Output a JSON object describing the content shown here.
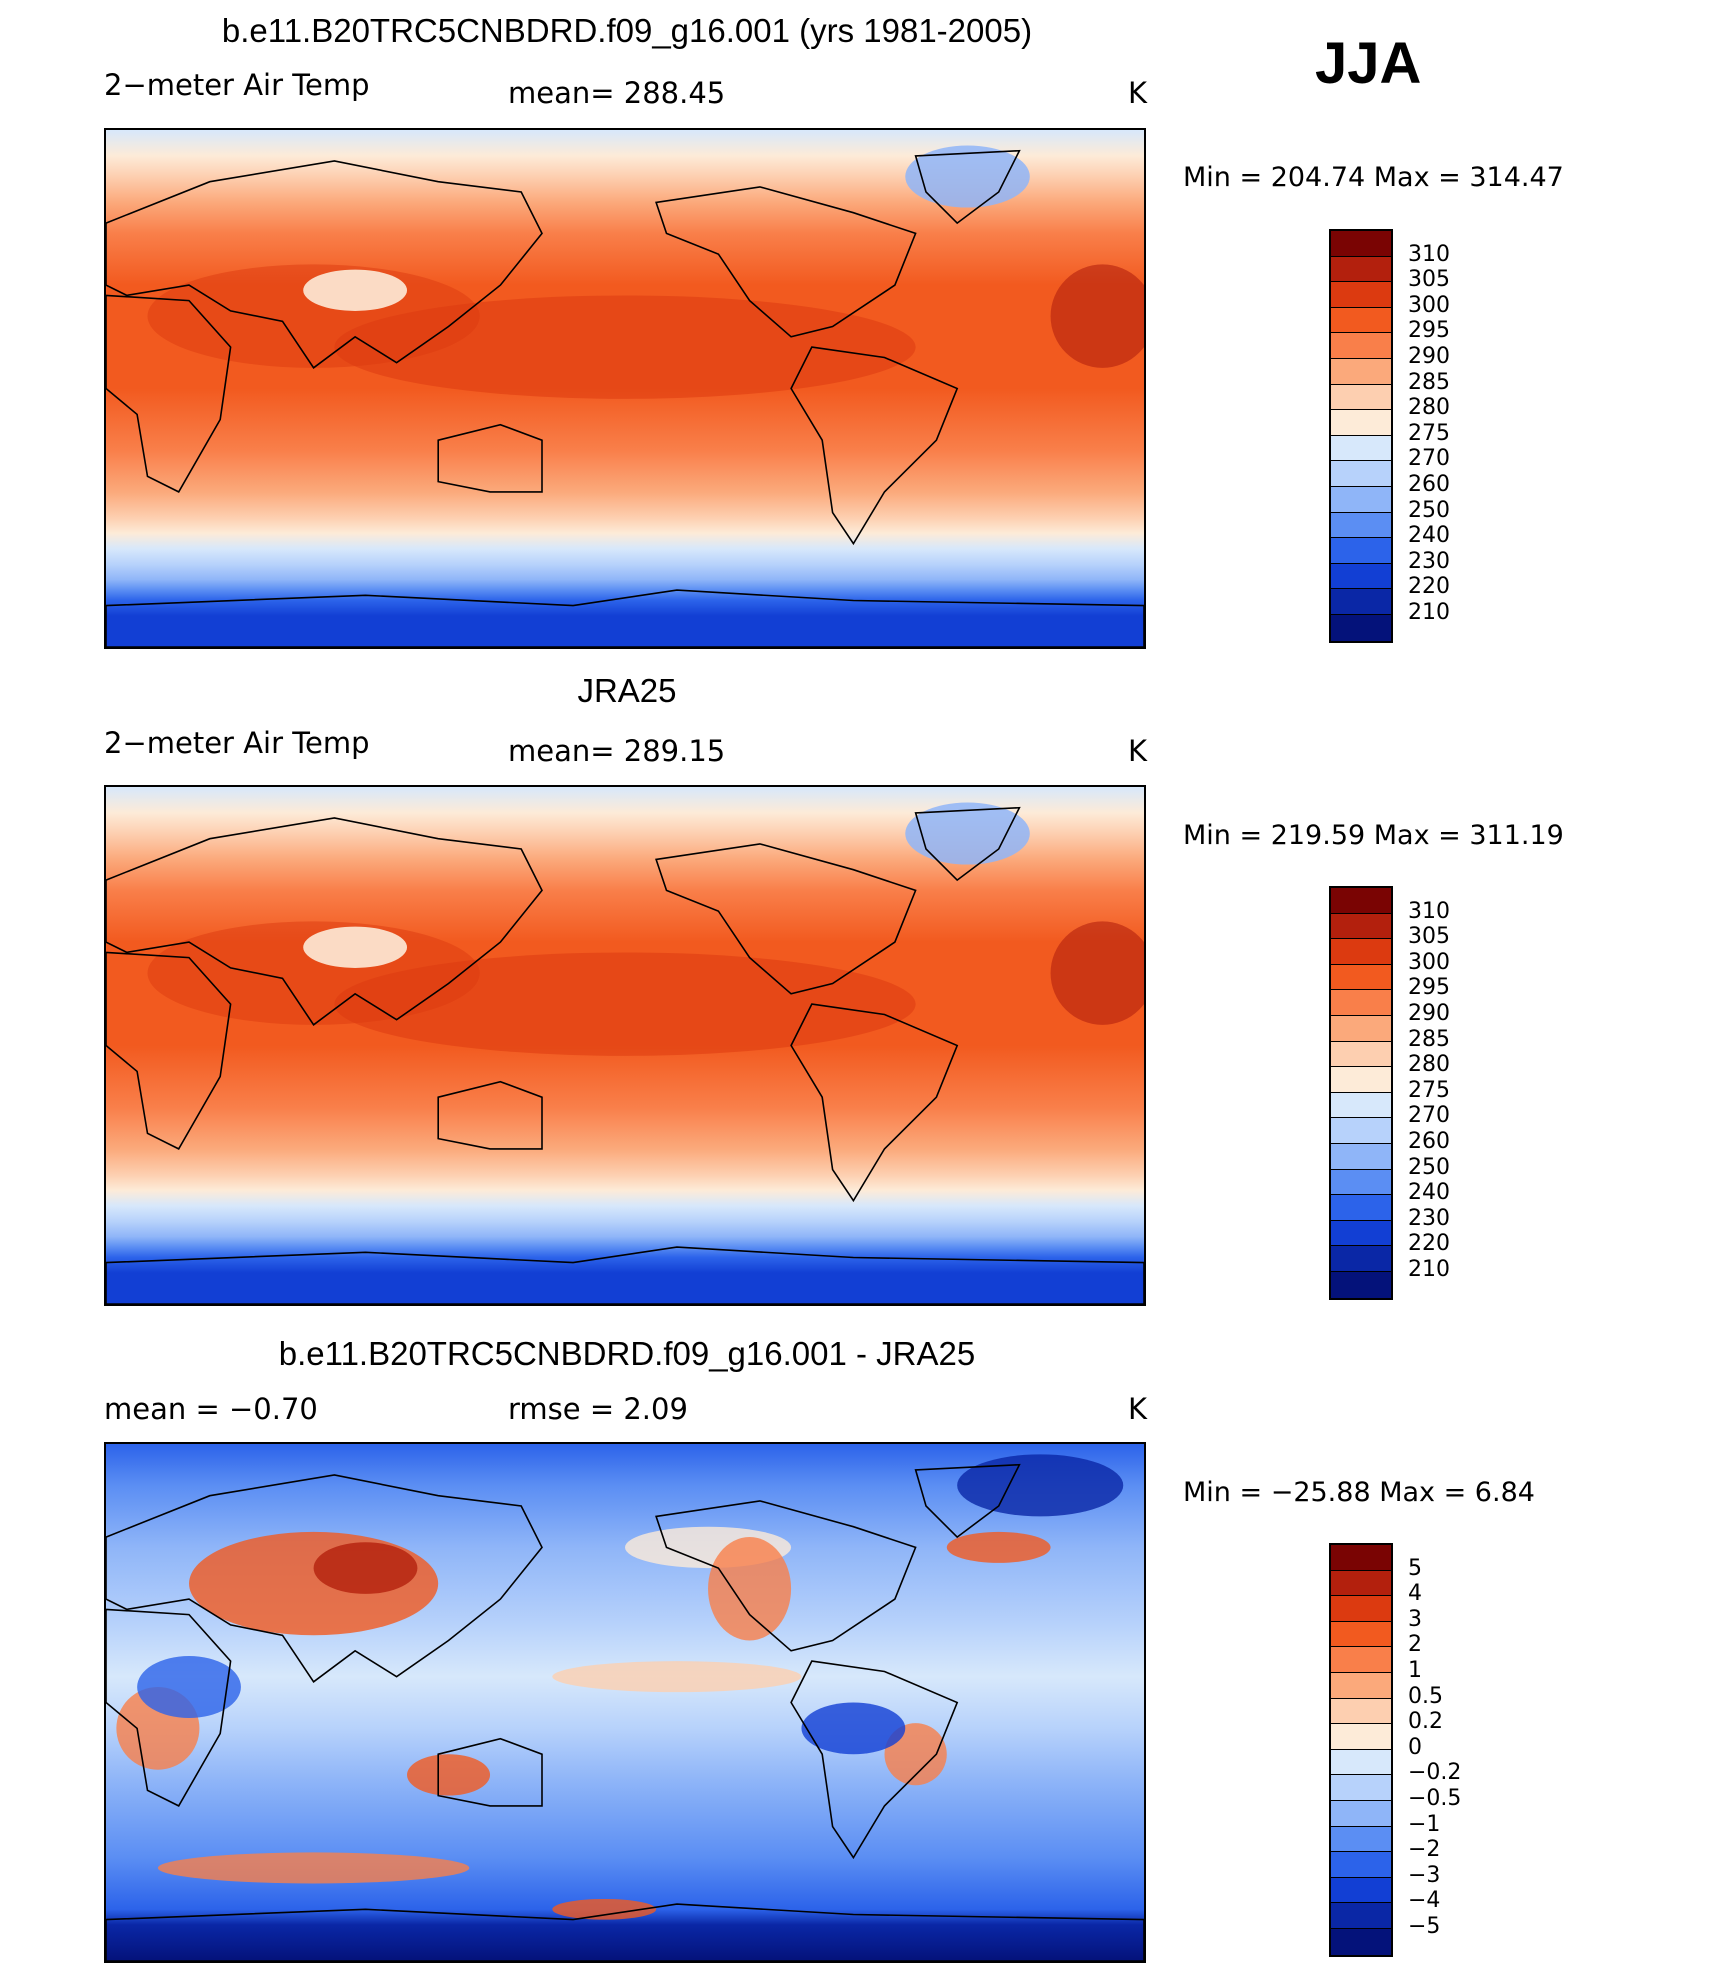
{
  "season": "JJA",
  "panels": [
    {
      "title": "b.e11.B20TRC5CNBDRD.f09_g16.001 (yrs 1981-2005)",
      "left_label": "2−meter Air Temp",
      "center_label": "mean=  288.45",
      "units": "K",
      "minmax": "Min  =  204.74  Max  =  314.47",
      "colorbar_labels": [
        "310",
        "305",
        "300",
        "295",
        "290",
        "285",
        "280",
        "275",
        "270",
        "260",
        "250",
        "240",
        "230",
        "220",
        "210"
      ],
      "colors": [
        "#7a0403",
        "#b3200d",
        "#dc3a10",
        "#f25a1f",
        "#f97f4a",
        "#fba97b",
        "#fdcfb0",
        "#fdebd8",
        "#d7e8fb",
        "#b7d2fb",
        "#8fb5f8",
        "#5b8ef3",
        "#2c63ea",
        "#123fd4",
        "#0a27a6",
        "#04127a"
      ],
      "type": "abs"
    },
    {
      "title": "JRA25",
      "left_label": "2−meter Air Temp",
      "center_label": "mean=  289.15",
      "units": "K",
      "minmax": "Min  =  219.59  Max  =  311.19",
      "colorbar_labels": [
        "310",
        "305",
        "300",
        "295",
        "290",
        "285",
        "280",
        "275",
        "270",
        "260",
        "250",
        "240",
        "230",
        "220",
        "210"
      ],
      "colors": [
        "#7a0403",
        "#b3200d",
        "#dc3a10",
        "#f25a1f",
        "#f97f4a",
        "#fba97b",
        "#fdcfb0",
        "#fdebd8",
        "#d7e8fb",
        "#b7d2fb",
        "#8fb5f8",
        "#5b8ef3",
        "#2c63ea",
        "#123fd4",
        "#0a27a6",
        "#04127a"
      ],
      "type": "abs"
    },
    {
      "title": "b.e11.B20TRC5CNBDRD.f09_g16.001 - JRA25",
      "left_label": "mean  =    −0.70",
      "center_label": "rmse  =     2.09",
      "units": "K",
      "minmax": "Min  =  −25.88  Max  =     6.84",
      "colorbar_labels": [
        "5",
        "4",
        "3",
        "2",
        "1",
        "0.5",
        "0.2",
        "0",
        "−0.2",
        "−0.5",
        "−1",
        "−2",
        "−3",
        "−4",
        "−5"
      ],
      "colors": [
        "#7a0403",
        "#b3200d",
        "#dc3a10",
        "#f25a1f",
        "#f97f4a",
        "#fba97b",
        "#fdcfb0",
        "#fdebd8",
        "#d7e8fb",
        "#b7d2fb",
        "#8fb5f8",
        "#5b8ef3",
        "#2c63ea",
        "#123fd4",
        "#0a27a6",
        "#04127a"
      ],
      "type": "diff"
    }
  ]
}
